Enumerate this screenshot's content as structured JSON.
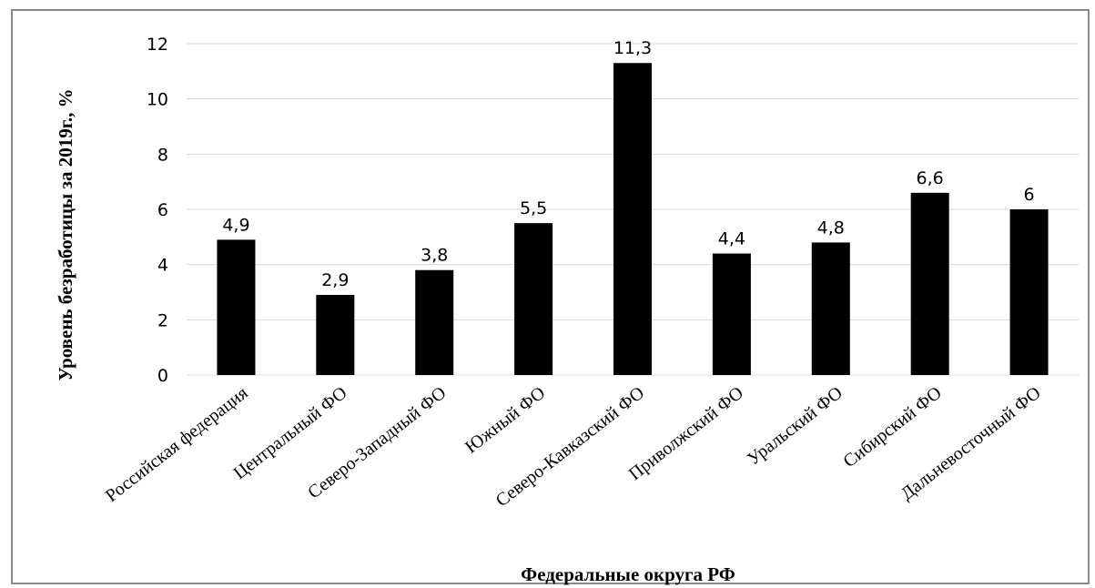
{
  "chart_data": {
    "type": "bar",
    "categories": [
      "Российская федерация",
      "Центральный ФО",
      "Северо-Западный ФО",
      "Южный ФО",
      "Северо-Кавказский ФО",
      "Приволжский ФО",
      "Уральский ФО",
      "Сибирский ФО",
      "Дальневосточный ФО"
    ],
    "values": [
      4.9,
      2.9,
      3.8,
      5.5,
      11.3,
      4.4,
      4.8,
      6.6,
      6
    ],
    "data_labels": [
      "4,9",
      "2,9",
      "3,8",
      "5,5",
      "11,3",
      "4,4",
      "4,8",
      "6,6",
      "6"
    ],
    "ylim": [
      0,
      12
    ],
    "yticks": [
      0,
      2,
      4,
      6,
      8,
      10,
      12
    ],
    "xlabel": "Федеральные округа РФ",
    "ylabel": "Уровень безработицы за 2019г., %",
    "grid": true,
    "legend": "none",
    "bar_color": "#000000",
    "grid_color": "#d9d9d9"
  }
}
